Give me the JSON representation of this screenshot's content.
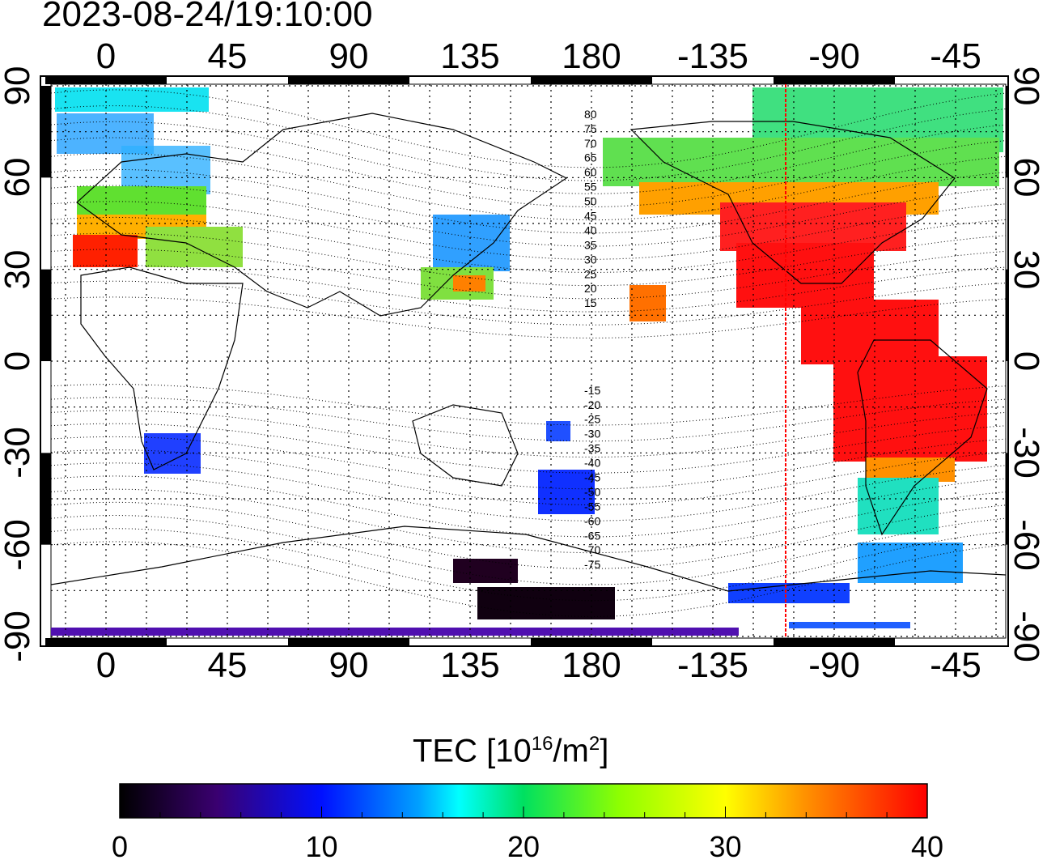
{
  "title": "2023-08-24/19:10:00",
  "top_ticks": [
    "0",
    "45",
    "90",
    "135",
    "180",
    "-135",
    "-90",
    "-45"
  ],
  "bottom_ticks": [
    "0",
    "45",
    "90",
    "135",
    "180",
    "-135",
    "-90",
    "-45"
  ],
  "left_ticks": [
    "90",
    "60",
    "30",
    "0",
    "-30",
    "-60",
    "-90"
  ],
  "right_ticks": [
    "90",
    "60",
    "30",
    "0",
    "-30",
    "-60",
    "-90"
  ],
  "contour_labels": [
    "80",
    "75",
    "70",
    "65",
    "60",
    "55",
    "50",
    "45",
    "40",
    "35",
    "30",
    "25",
    "20",
    "15",
    "-15",
    "-20",
    "-25",
    "-30",
    "-35",
    "-40",
    "-45",
    "-50",
    "-55",
    "-60",
    "-65",
    "-70",
    "-75"
  ],
  "colorbar": {
    "label_main": "TEC  [10",
    "label_exp1": "16",
    "label_mid": "/m",
    "label_exp2": "2",
    "label_end": "]",
    "ticks": [
      "0",
      "10",
      "20",
      "30",
      "40"
    ],
    "range": [
      0,
      40
    ]
  },
  "colors": {
    "low": "#000000",
    "high": "#ff0000",
    "marker_line": "#ff0000"
  },
  "marker_longitude": -109
}
